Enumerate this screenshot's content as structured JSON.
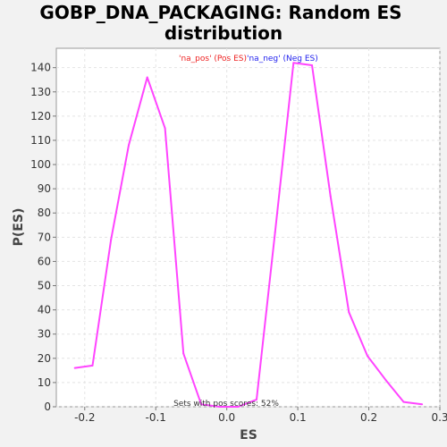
{
  "chart_data": {
    "type": "line",
    "title_lines": [
      "GOBP_DNA_PACKAGING: Random ES",
      "distribution"
    ],
    "xlabel": "ES",
    "ylabel": "P(ES)",
    "xlim": [
      -0.24,
      0.3
    ],
    "ylim": [
      0,
      148
    ],
    "xticks": [
      -0.2,
      -0.1,
      0.0,
      0.1,
      0.2,
      0.3
    ],
    "xtick_labels": [
      "-0.2",
      "-0.1",
      "0.0",
      "0.1",
      "0.2",
      "0.3"
    ],
    "yticks": [
      0,
      10,
      20,
      30,
      40,
      50,
      60,
      70,
      80,
      90,
      100,
      110,
      120,
      130,
      140
    ],
    "ytick_labels": [
      "0",
      "10",
      "20",
      "30",
      "40",
      "50",
      "60",
      "70",
      "80",
      "90",
      "100",
      "110",
      "120",
      "130",
      "140"
    ],
    "grid": true,
    "series": [
      {
        "color": "#ff44ff",
        "x": [
          -0.214,
          -0.189,
          -0.163,
          -0.138,
          -0.112,
          -0.087,
          -0.061,
          -0.036,
          -0.01,
          0.016,
          0.042,
          0.068,
          0.094,
          0.12,
          0.146,
          0.172,
          0.198,
          0.224,
          0.249,
          0.275
        ],
        "y": [
          16,
          17,
          69,
          108,
          136,
          115,
          22,
          1,
          0,
          0,
          3,
          72,
          142,
          141,
          87,
          39,
          21,
          11,
          2,
          1
        ]
      }
    ],
    "legend": {
      "placement": "top-center",
      "entries": [
        {
          "text": "'na_pos' (Pos ES)",
          "color": "#ee2222"
        },
        {
          "text": "'na_neg' (Neg ES)",
          "color": "#2222ee"
        }
      ]
    },
    "annotation": "Sets with pos scores: 52%"
  }
}
